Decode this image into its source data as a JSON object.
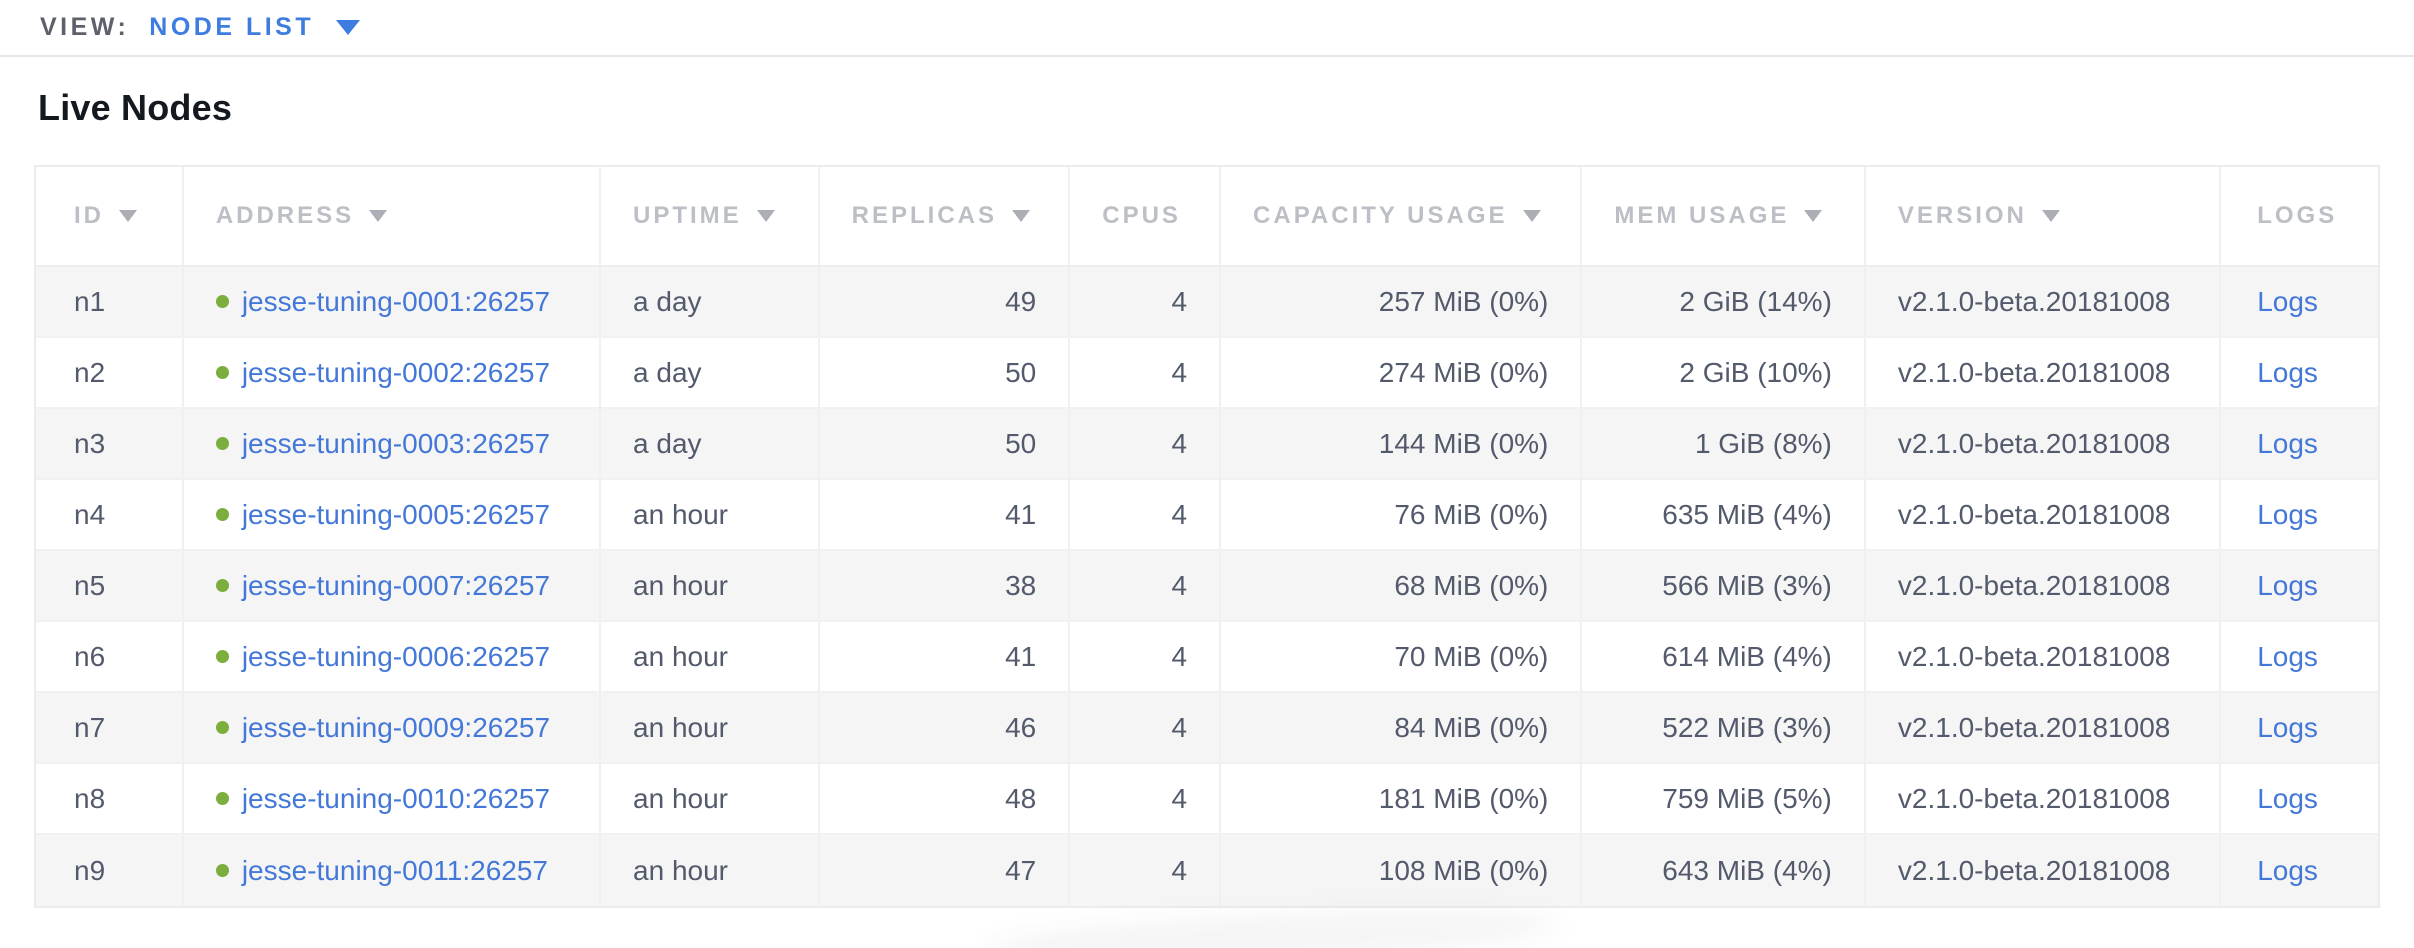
{
  "view_bar": {
    "label": "VIEW:",
    "selected": "NODE LIST"
  },
  "page": {
    "title": "Live Nodes"
  },
  "table": {
    "logs_label": "Logs",
    "columns": [
      {
        "key": "id",
        "label": "ID",
        "sortable": true,
        "align": "left"
      },
      {
        "key": "address",
        "label": "ADDRESS",
        "sortable": true,
        "align": "left"
      },
      {
        "key": "uptime",
        "label": "UPTIME",
        "sortable": true,
        "align": "left"
      },
      {
        "key": "replicas",
        "label": "REPLICAS",
        "sortable": true,
        "align": "right"
      },
      {
        "key": "cpus",
        "label": "CPUS",
        "sortable": false,
        "align": "right"
      },
      {
        "key": "capacity_usage",
        "label": "CAPACITY USAGE",
        "sortable": true,
        "align": "right"
      },
      {
        "key": "mem_usage",
        "label": "MEM USAGE",
        "sortable": true,
        "align": "right"
      },
      {
        "key": "version",
        "label": "VERSION",
        "sortable": true,
        "align": "left"
      },
      {
        "key": "logs",
        "label": "LOGS",
        "sortable": false,
        "align": "left"
      }
    ],
    "rows": [
      {
        "id": "n1",
        "status": "healthy",
        "address": "jesse-tuning-0001:26257",
        "uptime": "a day",
        "replicas": "49",
        "cpus": "4",
        "capacity_usage": "257 MiB (0%)",
        "mem_usage": "2 GiB (14%)",
        "version": "v2.1.0-beta.20181008"
      },
      {
        "id": "n2",
        "status": "healthy",
        "address": "jesse-tuning-0002:26257",
        "uptime": "a day",
        "replicas": "50",
        "cpus": "4",
        "capacity_usage": "274 MiB (0%)",
        "mem_usage": "2 GiB (10%)",
        "version": "v2.1.0-beta.20181008"
      },
      {
        "id": "n3",
        "status": "healthy",
        "address": "jesse-tuning-0003:26257",
        "uptime": "a day",
        "replicas": "50",
        "cpus": "4",
        "capacity_usage": "144 MiB (0%)",
        "mem_usage": "1 GiB (8%)",
        "version": "v2.1.0-beta.20181008"
      },
      {
        "id": "n4",
        "status": "healthy",
        "address": "jesse-tuning-0005:26257",
        "uptime": "an hour",
        "replicas": "41",
        "cpus": "4",
        "capacity_usage": "76 MiB (0%)",
        "mem_usage": "635 MiB (4%)",
        "version": "v2.1.0-beta.20181008"
      },
      {
        "id": "n5",
        "status": "healthy",
        "address": "jesse-tuning-0007:26257",
        "uptime": "an hour",
        "replicas": "38",
        "cpus": "4",
        "capacity_usage": "68 MiB (0%)",
        "mem_usage": "566 MiB (3%)",
        "version": "v2.1.0-beta.20181008"
      },
      {
        "id": "n6",
        "status": "healthy",
        "address": "jesse-tuning-0006:26257",
        "uptime": "an hour",
        "replicas": "41",
        "cpus": "4",
        "capacity_usage": "70 MiB (0%)",
        "mem_usage": "614 MiB (4%)",
        "version": "v2.1.0-beta.20181008"
      },
      {
        "id": "n7",
        "status": "healthy",
        "address": "jesse-tuning-0009:26257",
        "uptime": "an hour",
        "replicas": "46",
        "cpus": "4",
        "capacity_usage": "84 MiB (0%)",
        "mem_usage": "522 MiB (3%)",
        "version": "v2.1.0-beta.20181008"
      },
      {
        "id": "n8",
        "status": "healthy",
        "address": "jesse-tuning-0010:26257",
        "uptime": "an hour",
        "replicas": "48",
        "cpus": "4",
        "capacity_usage": "181 MiB (0%)",
        "mem_usage": "759 MiB (5%)",
        "version": "v2.1.0-beta.20181008"
      },
      {
        "id": "n9",
        "status": "healthy",
        "address": "jesse-tuning-0011:26257",
        "uptime": "an hour",
        "replicas": "47",
        "cpus": "4",
        "capacity_usage": "108 MiB (0%)",
        "mem_usage": "643 MiB (4%)",
        "version": "v2.1.0-beta.20181008"
      }
    ]
  },
  "colors": {
    "accent_blue": "#3e7ce0",
    "link_blue": "#4478d8",
    "status_green_healthy": "#7cae3d",
    "header_text_gray": "#bcbfc5",
    "cell_text_slate": "#525a6b",
    "row_stripe": "#f5f5f6",
    "table_border": "#ececec"
  }
}
